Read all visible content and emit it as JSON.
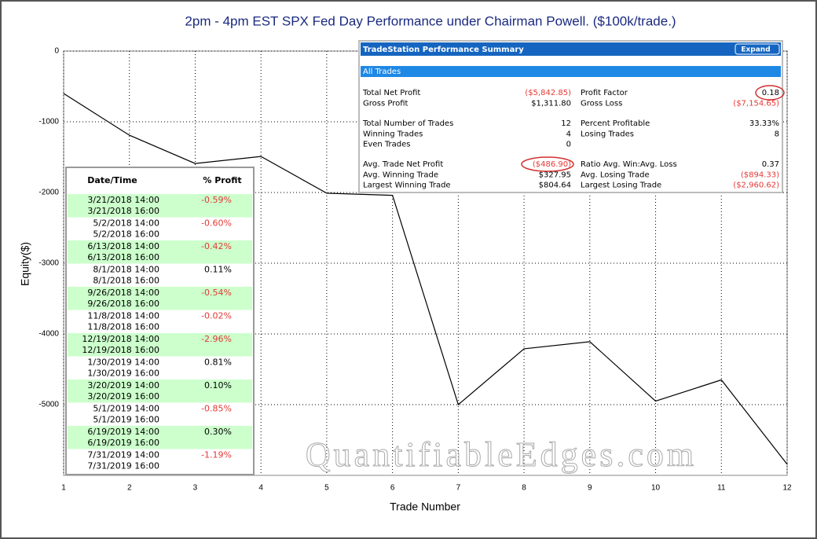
{
  "chart_data": {
    "type": "line",
    "title": "2pm - 4pm EST SPX Fed Day Performance under Chairman Powell. ($100k/trade.)",
    "x_label": "Trade Number",
    "y_label": "Equity($)",
    "watermark": "QuantifiableEdges.com",
    "x": [
      1,
      2,
      3,
      4,
      5,
      6,
      7,
      8,
      9,
      10,
      11,
      12
    ],
    "series": [
      {
        "name": "Equity",
        "color": "#000000",
        "values": [
          -600,
          -1190,
          -1590,
          -1490,
          -2010,
          -2040,
          -5000,
          -4210,
          -4110,
          -4950,
          -4650,
          -5842.85
        ]
      }
    ],
    "xlim": [
      1,
      12
    ],
    "xticks": [
      1,
      2,
      3,
      4,
      5,
      6,
      7,
      8,
      9,
      10,
      11,
      12
    ],
    "ylim": [
      -6000,
      0
    ],
    "yticks": [
      0,
      -1000,
      -2000,
      -3000,
      -4000,
      -5000
    ],
    "grid": true
  },
  "trade_list": {
    "headers": [
      "Date/Time",
      "% Profit"
    ],
    "rows": [
      {
        "open": "3/21/2018 14:00",
        "close": "3/21/2018 16:00",
        "profit": "-0.59%"
      },
      {
        "open": "5/2/2018 14:00",
        "close": "5/2/2018 16:00",
        "profit": "-0.60%"
      },
      {
        "open": "6/13/2018 14:00",
        "close": "6/13/2018 16:00",
        "profit": "-0.42%"
      },
      {
        "open": "8/1/2018 14:00",
        "close": "8/1/2018 16:00",
        "profit": "0.11%"
      },
      {
        "open": "9/26/2018 14:00",
        "close": "9/26/2018 16:00",
        "profit": "-0.54%"
      },
      {
        "open": "11/8/2018 14:00",
        "close": "11/8/2018 16:00",
        "profit": "-0.02%"
      },
      {
        "open": "12/19/2018 14:00",
        "close": "12/19/2018 16:00",
        "profit": "-2.96%"
      },
      {
        "open": "1/30/2019 14:00",
        "close": "1/30/2019 16:00",
        "profit": "0.81%"
      },
      {
        "open": "3/20/2019 14:00",
        "close": "3/20/2019 16:00",
        "profit": "0.10%"
      },
      {
        "open": "5/1/2019 14:00",
        "close": "5/1/2019 16:00",
        "profit": "-0.85%"
      },
      {
        "open": "6/19/2019 14:00",
        "close": "6/19/2019 16:00",
        "profit": "0.30%"
      },
      {
        "open": "7/31/2019 14:00",
        "close": "7/31/2019 16:00",
        "profit": "-1.19%"
      }
    ]
  },
  "performance_summary": {
    "title": "TradeStation Performance Summary",
    "button": "Expand",
    "tab": "All Trades",
    "sections": [
      {
        "left": [
          [
            "Total Net Profit",
            "($5,842.85)"
          ],
          [
            "Gross Profit",
            "$1,311.80"
          ]
        ],
        "right": [
          [
            "Profit Factor",
            "0.18"
          ],
          [
            "Gross Loss",
            "($7,154.65)"
          ]
        ]
      },
      {
        "left": [
          [
            "Total Number of Trades",
            "12"
          ],
          [
            "Winning Trades",
            "4"
          ],
          [
            "Even Trades",
            "0"
          ]
        ],
        "right": [
          [
            "Percent Profitable",
            "33.33%"
          ],
          [
            "Losing Trades",
            "8"
          ]
        ]
      },
      {
        "left": [
          [
            "Avg. Trade Net Profit",
            "($486.90)"
          ],
          [
            "Avg. Winning Trade",
            "$327.95"
          ],
          [
            "Largest Winning Trade",
            "$804.64"
          ]
        ],
        "right": [
          [
            "Ratio Avg. Win:Avg. Loss",
            "0.37"
          ],
          [
            "Avg. Losing Trade",
            "($894.33)"
          ],
          [
            "Largest Losing Trade",
            "($2,960.62)"
          ]
        ]
      }
    ]
  }
}
